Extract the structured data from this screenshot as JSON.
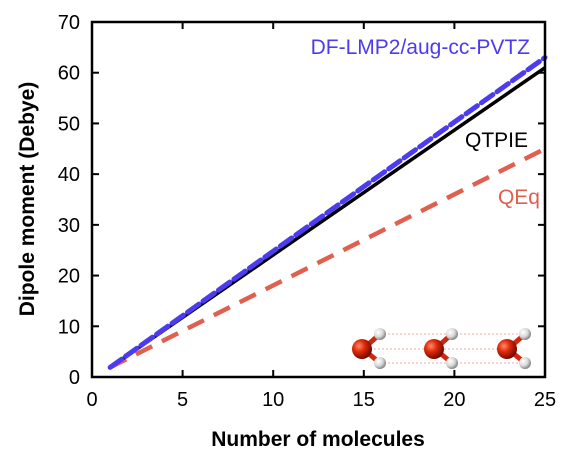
{
  "chart_data": {
    "type": "line",
    "xlabel": "Number of molecules",
    "ylabel": "Dipole moment (Debye)",
    "xlim": [
      0,
      25
    ],
    "ylim": [
      0,
      70
    ],
    "x_ticks": [
      0,
      5,
      10,
      15,
      20,
      25
    ],
    "y_ticks": [
      0,
      10,
      20,
      30,
      40,
      50,
      60,
      70
    ],
    "grid": false,
    "series": [
      {
        "name": "DF-LMP2/aug-cc-PVTZ",
        "color": "#4d3bf0",
        "style": "dashed-thick",
        "x": [
          1,
          25
        ],
        "y": [
          1.9,
          63.0
        ]
      },
      {
        "name": "QTPIE",
        "color": "#000000",
        "style": "solid",
        "x": [
          1,
          25
        ],
        "y": [
          1.9,
          61.0
        ]
      },
      {
        "name": "QEq",
        "color": "#e06050",
        "style": "dashed",
        "x": [
          1,
          25
        ],
        "y": [
          1.9,
          45.0
        ]
      }
    ],
    "inset": "water-chain-molecules"
  }
}
